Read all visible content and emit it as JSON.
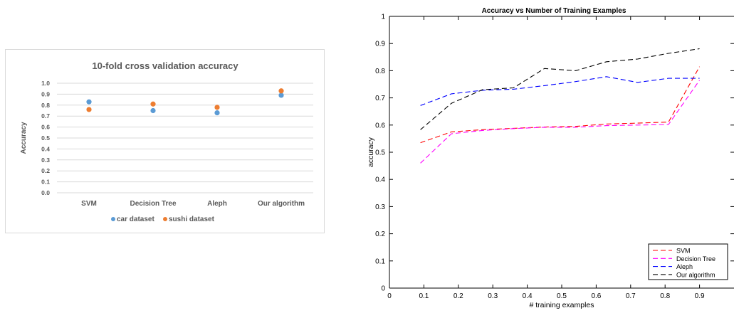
{
  "chart_data": [
    {
      "type": "scatter",
      "title": "10-fold cross validation accuracy",
      "xlabel": "",
      "ylabel": "Accuracy",
      "ylim": [
        0,
        1
      ],
      "yticks": [
        "0.0",
        "0.1",
        "0.2",
        "0.3",
        "0.4",
        "0.5",
        "0.6",
        "0.7",
        "0.8",
        "0.9",
        "1.0"
      ],
      "categories": [
        "SVM",
        "Decision Tree",
        "Aleph",
        "Our algorithm"
      ],
      "grid": true,
      "legend_position": "bottom",
      "series": [
        {
          "name": "car dataset",
          "color": "#5b9bd5",
          "values": [
            0.83,
            0.75,
            0.73,
            0.89
          ]
        },
        {
          "name": "sushi dataset",
          "color": "#ed7d31",
          "values": [
            0.76,
            0.81,
            0.78,
            0.93
          ]
        }
      ]
    },
    {
      "type": "line",
      "title": "Accuracy vs Number of Training Examples",
      "xlabel": "# training examples",
      "ylabel": "accuracy",
      "xlim": [
        0,
        1
      ],
      "ylim": [
        0,
        1
      ],
      "xticks": [
        "0",
        "0.1",
        "0.2",
        "0.3",
        "0.4",
        "0.5",
        "0.6",
        "0.7",
        "0.8",
        "0.9"
      ],
      "yticks": [
        "0",
        "0.1",
        "0.2",
        "0.3",
        "0.4",
        "0.5",
        "0.6",
        "0.7",
        "0.8",
        "0.9",
        "1"
      ],
      "grid": false,
      "legend_position": "bottom-right",
      "series": [
        {
          "name": "SVM",
          "color": "#ff0000",
          "x": [
            0.09,
            0.18,
            0.27,
            0.36,
            0.45,
            0.54,
            0.63,
            0.72,
            0.81,
            0.9
          ],
          "y": [
            0.535,
            0.575,
            0.583,
            0.588,
            0.593,
            0.595,
            0.604,
            0.607,
            0.611,
            0.815
          ]
        },
        {
          "name": "Decision Tree",
          "color": "#ff00ff",
          "x": [
            0.09,
            0.18,
            0.27,
            0.36,
            0.45,
            0.54,
            0.63,
            0.72,
            0.81,
            0.9
          ],
          "y": [
            0.46,
            0.568,
            0.58,
            0.587,
            0.592,
            0.592,
            0.598,
            0.6,
            0.602,
            0.765
          ]
        },
        {
          "name": "Aleph",
          "color": "#0000ff",
          "x": [
            0.09,
            0.18,
            0.27,
            0.36,
            0.45,
            0.54,
            0.63,
            0.72,
            0.81,
            0.9
          ],
          "y": [
            0.672,
            0.715,
            0.728,
            0.732,
            0.745,
            0.76,
            0.778,
            0.757,
            0.772,
            0.772
          ]
        },
        {
          "name": "Our algorithm",
          "color": "#000000",
          "x": [
            0.09,
            0.18,
            0.27,
            0.36,
            0.45,
            0.54,
            0.63,
            0.72,
            0.81,
            0.9
          ],
          "y": [
            0.583,
            0.68,
            0.73,
            0.737,
            0.808,
            0.8,
            0.833,
            0.843,
            0.864,
            0.881
          ]
        }
      ]
    }
  ]
}
